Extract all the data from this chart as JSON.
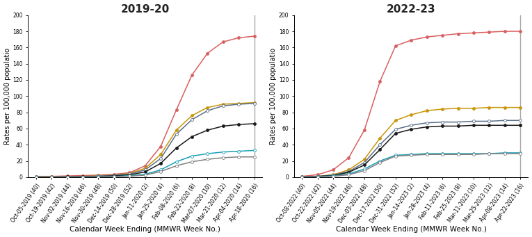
{
  "chart1": {
    "title": "2019-20",
    "x_labels": [
      "Oct-05-2019 (40)",
      "Oct-19-2019 (42)",
      "Nov-02-2019 (44)",
      "Nov-16-2019 (46)",
      "Nov-30-2019 (48)",
      "Dec-14-2019 (50)",
      "Dec-28-2019 (52)",
      "Jan-11-2020 (2)",
      "Jan-25-2020 (4)",
      "Feb-08-2020 (6)",
      "Feb-22-2020 (8)",
      "Mar-07-2020 (10)",
      "Mar-21-2020 (12)",
      "Apr-04-2020 (14)",
      "Apr-18-2020 (16)"
    ],
    "series": {
      "red": [
        1,
        1,
        1.5,
        2,
        2.5,
        3.5,
        5.5,
        14,
        38,
        83,
        126,
        153,
        167,
        172,
        174
      ],
      "gold": [
        0.5,
        0.5,
        0.8,
        1,
        1.5,
        2.5,
        4.5,
        11,
        28,
        58,
        76,
        86,
        90,
        91,
        92
      ],
      "blue": [
        0.4,
        0.4,
        0.7,
        0.9,
        1.3,
        2.2,
        3.8,
        9,
        23,
        53,
        71,
        82,
        88,
        90,
        91
      ],
      "black": [
        0.3,
        0.3,
        0.4,
        0.5,
        0.8,
        1.5,
        2.8,
        6.5,
        17,
        36,
        50,
        58,
        63,
        65,
        66
      ],
      "cyan": [
        0.2,
        0.2,
        0.2,
        0.3,
        0.4,
        0.8,
        1.8,
        3.5,
        9,
        19,
        26,
        29,
        31,
        32,
        33
      ],
      "gray": [
        0.1,
        0.1,
        0.15,
        0.2,
        0.3,
        0.6,
        1.2,
        2.5,
        7,
        14,
        19,
        22,
        24,
        25,
        25
      ]
    }
  },
  "chart2": {
    "title": "2022-23",
    "x_labels": [
      "Oct-08-2022 (40)",
      "Oct-22-2022 (42)",
      "Nov-05-2022 (44)",
      "Nov-19-2022 (46)",
      "Dec-03-2022 (48)",
      "Dec-17-2022 (50)",
      "Dec-31-2022 (52)",
      "Jan-14-2023 (2)",
      "Jan-28-2023 (4)",
      "Feb-11-2023 (6)",
      "Feb-25-2023 (8)",
      "Mar-11-2023 (10)",
      "Mar-25-2023 (12)",
      "Apr-08-2023 (14)",
      "Apr-22-2023 (16)"
    ],
    "series": {
      "red": [
        1,
        3,
        9,
        24,
        58,
        118,
        162,
        169,
        173,
        175,
        177,
        178,
        179,
        180,
        180
      ],
      "gold": [
        0.5,
        1,
        3,
        9,
        22,
        48,
        70,
        77,
        82,
        84,
        85,
        85,
        86,
        86,
        86
      ],
      "blue": [
        0.4,
        1,
        2.5,
        7,
        18,
        40,
        59,
        64,
        67,
        68,
        68,
        69,
        69,
        70,
        70
      ],
      "black": [
        0.3,
        0.8,
        2,
        6,
        15,
        34,
        54,
        59,
        62,
        63,
        63,
        64,
        64,
        64,
        64
      ],
      "cyan": [
        0.2,
        0.5,
        1.5,
        4,
        10,
        20,
        27,
        28,
        29,
        29,
        29,
        29,
        29,
        30,
        30
      ],
      "gray": [
        0.1,
        0.3,
        1,
        3,
        8,
        18,
        26,
        27,
        28,
        28,
        28,
        28,
        29,
        29,
        29
      ]
    }
  },
  "colors": {
    "red": "#d95f5f",
    "gold": "#c8960a",
    "blue": "#5a6f8a",
    "black": "#1a1a1a",
    "cyan": "#18a0b8",
    "gray": "#808080"
  },
  "marker_colors": {
    "red": {
      "fc": "#d95f5f",
      "ec": "#d95f5f"
    },
    "gold": {
      "fc": "#c8960a",
      "ec": "#c8960a"
    },
    "blue": {
      "fc": "#ffffff",
      "ec": "#5a6f8a"
    },
    "black": {
      "fc": "#1a1a1a",
      "ec": "#1a1a1a"
    },
    "cyan": {
      "fc": "#ffffff",
      "ec": "#18a0b8"
    },
    "gray": {
      "fc": "#ffffff",
      "ec": "#808080"
    }
  },
  "series_order": [
    "red",
    "gold",
    "blue",
    "black",
    "cyan",
    "gray"
  ],
  "ylabel": "Rates per 100,000 populatio",
  "xlabel": "Calendar Week Ending (MMWR Week No.)",
  "ylim": [
    0,
    200
  ],
  "yticks": [
    0,
    20,
    40,
    60,
    80,
    100,
    120,
    140,
    160,
    180,
    200
  ],
  "bg_color": "#ffffff",
  "title_fontsize": 11,
  "tick_fontsize": 5.5,
  "label_fontsize": 7.5,
  "ylabel_fontsize": 7.0
}
